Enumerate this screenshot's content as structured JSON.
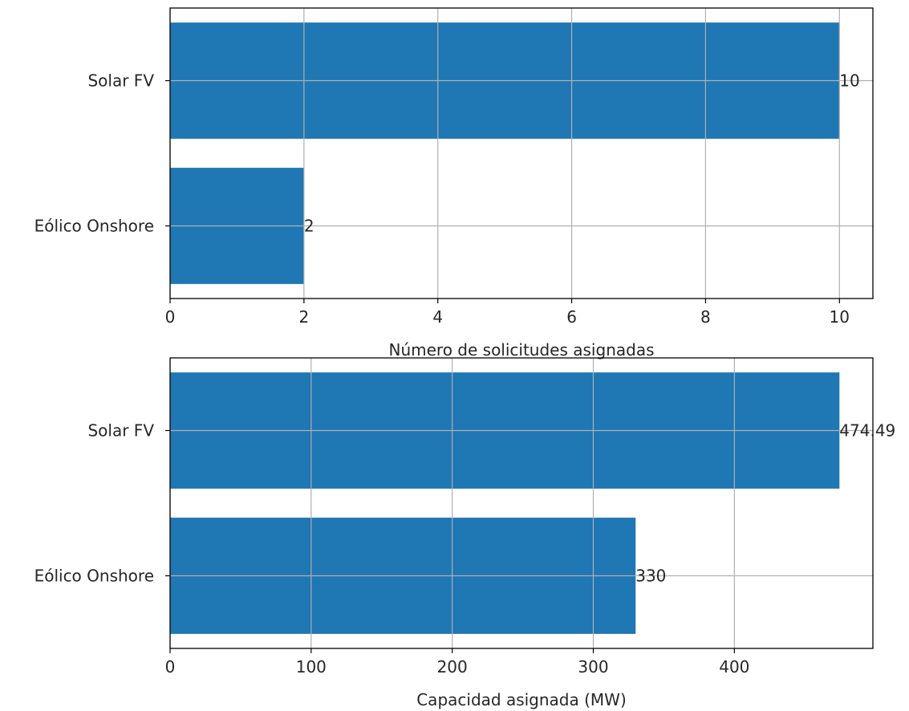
{
  "chart_data": [
    {
      "type": "bar",
      "orientation": "horizontal",
      "categories": [
        "Eólico Onshore",
        "Solar FV"
      ],
      "values": [
        2,
        10
      ],
      "value_labels": [
        "2",
        "10"
      ],
      "xlabel": "Número de solicitudes asignadas",
      "ylabel": "",
      "title": "",
      "xlim": [
        0,
        10.5
      ],
      "xticks": [
        0,
        2,
        4,
        6,
        8,
        10
      ],
      "xtick_labels": [
        "0",
        "2",
        "4",
        "6",
        "8",
        "10"
      ],
      "grid": true,
      "color": "#1f77b4"
    },
    {
      "type": "bar",
      "orientation": "horizontal",
      "categories": [
        "Eólico Onshore",
        "Solar FV"
      ],
      "values": [
        330,
        474.49
      ],
      "value_labels": [
        "330",
        "474.49"
      ],
      "xlabel": "Capacidad asignada (MW)",
      "ylabel": "",
      "title": "",
      "xlim": [
        0,
        498.2
      ],
      "xticks": [
        0,
        100,
        200,
        300,
        400
      ],
      "xtick_labels": [
        "0",
        "100",
        "200",
        "300",
        "400"
      ],
      "grid": true,
      "color": "#1f77b4"
    }
  ]
}
